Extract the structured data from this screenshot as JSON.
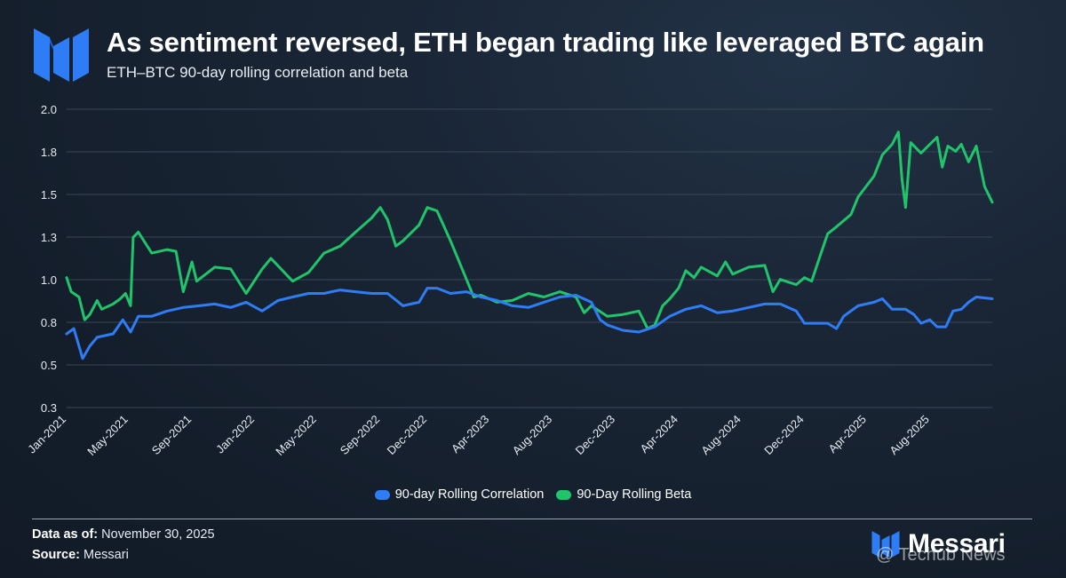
{
  "header": {
    "title": "As sentiment reversed, ETH began trading like leveraged BTC again",
    "subtitle": "ETH–BTC 90-day rolling correlation and beta"
  },
  "footer": {
    "data_as_of_label": "Data as of:",
    "data_as_of_value": "November 30, 2025",
    "source_label": "Source:",
    "source_value": "Messari",
    "brand": "Messari",
    "watermark": "@ Techub News"
  },
  "colors": {
    "correlation": "#2f7df6",
    "beta": "#20c46a",
    "grid": "#3a4656",
    "brand_blue": "#2f7df6"
  },
  "chart_data": {
    "type": "line",
    "title": "As sentiment reversed, ETH began trading like leveraged BTC again",
    "subtitle": "ETH–BTC 90-day rolling correlation and beta",
    "xlabel": "",
    "ylabel": "",
    "ylim": [
      0.3,
      2.0
    ],
    "y_ticks": [
      "2.0",
      "1.8",
      "1.5",
      "1.3",
      "1.0",
      "0.8",
      "0.5",
      "0.3"
    ],
    "x_ticks": [
      "Jan-2021",
      "May-2021",
      "Sep-2021",
      "Jan-2022",
      "May-2022",
      "Sep-2022",
      "Dec-2022",
      "Apr-2023",
      "Aug-2023",
      "Dec-2023",
      "Apr-2024",
      "Aug-2024",
      "Dec-2024",
      "Apr-2025",
      "Aug-2025"
    ],
    "grid": true,
    "legend_position": "bottom",
    "series": [
      {
        "name": "90-day Rolling Correlation",
        "color": "#2f7df6",
        "points": [
          [
            "2021-01-01",
            0.72
          ],
          [
            "2021-01-15",
            0.75
          ],
          [
            "2021-02-01",
            0.58
          ],
          [
            "2021-02-15",
            0.65
          ],
          [
            "2021-03-01",
            0.7
          ],
          [
            "2021-04-01",
            0.72
          ],
          [
            "2021-04-20",
            0.8
          ],
          [
            "2021-05-05",
            0.73
          ],
          [
            "2021-05-20",
            0.82
          ],
          [
            "2021-06-15",
            0.82
          ],
          [
            "2021-07-15",
            0.85
          ],
          [
            "2021-08-15",
            0.87
          ],
          [
            "2021-09-15",
            0.88
          ],
          [
            "2021-10-15",
            0.89
          ],
          [
            "2021-11-15",
            0.87
          ],
          [
            "2021-12-15",
            0.9
          ],
          [
            "2022-01-15",
            0.85
          ],
          [
            "2022-02-15",
            0.91
          ],
          [
            "2022-03-15",
            0.93
          ],
          [
            "2022-04-15",
            0.95
          ],
          [
            "2022-05-15",
            0.95
          ],
          [
            "2022-06-15",
            0.97
          ],
          [
            "2022-07-15",
            0.96
          ],
          [
            "2022-08-15",
            0.95
          ],
          [
            "2022-09-15",
            0.95
          ],
          [
            "2022-10-15",
            0.88
          ],
          [
            "2022-11-15",
            0.9
          ],
          [
            "2022-12-01",
            0.98
          ],
          [
            "2022-12-20",
            0.98
          ],
          [
            "2023-01-15",
            0.95
          ],
          [
            "2023-02-15",
            0.96
          ],
          [
            "2023-03-15",
            0.93
          ],
          [
            "2023-04-15",
            0.91
          ],
          [
            "2023-05-15",
            0.88
          ],
          [
            "2023-06-15",
            0.87
          ],
          [
            "2023-07-15",
            0.9
          ],
          [
            "2023-08-15",
            0.93
          ],
          [
            "2023-09-15",
            0.94
          ],
          [
            "2023-10-15",
            0.9
          ],
          [
            "2023-11-01",
            0.8
          ],
          [
            "2023-11-15",
            0.77
          ],
          [
            "2023-12-15",
            0.74
          ],
          [
            "2024-01-15",
            0.73
          ],
          [
            "2024-02-15",
            0.76
          ],
          [
            "2024-03-15",
            0.82
          ],
          [
            "2024-04-15",
            0.86
          ],
          [
            "2024-05-15",
            0.88
          ],
          [
            "2024-06-15",
            0.84
          ],
          [
            "2024-07-15",
            0.85
          ],
          [
            "2024-08-15",
            0.87
          ],
          [
            "2024-09-15",
            0.89
          ],
          [
            "2024-10-15",
            0.89
          ],
          [
            "2024-11-15",
            0.85
          ],
          [
            "2024-12-01",
            0.78
          ],
          [
            "2024-12-15",
            0.78
          ],
          [
            "2025-01-15",
            0.78
          ],
          [
            "2025-02-01",
            0.75
          ],
          [
            "2025-02-15",
            0.82
          ],
          [
            "2025-03-15",
            0.88
          ],
          [
            "2025-04-15",
            0.9
          ],
          [
            "2025-05-01",
            0.92
          ],
          [
            "2025-05-20",
            0.86
          ],
          [
            "2025-06-15",
            0.86
          ],
          [
            "2025-07-01",
            0.83
          ],
          [
            "2025-07-15",
            0.78
          ],
          [
            "2025-08-01",
            0.8
          ],
          [
            "2025-08-15",
            0.76
          ],
          [
            "2025-09-01",
            0.76
          ],
          [
            "2025-09-15",
            0.85
          ],
          [
            "2025-10-01",
            0.86
          ],
          [
            "2025-10-15",
            0.9
          ],
          [
            "2025-10-30",
            0.93
          ],
          [
            "2025-11-30",
            0.92
          ]
        ]
      },
      {
        "name": "90-Day Rolling Beta",
        "color": "#20c46a",
        "points": [
          [
            "2021-01-01",
            1.04
          ],
          [
            "2021-01-10",
            0.96
          ],
          [
            "2021-01-25",
            0.93
          ],
          [
            "2021-02-05",
            0.8
          ],
          [
            "2021-02-15",
            0.83
          ],
          [
            "2021-03-01",
            0.91
          ],
          [
            "2021-03-10",
            0.86
          ],
          [
            "2021-04-01",
            0.89
          ],
          [
            "2021-04-15",
            0.92
          ],
          [
            "2021-04-25",
            0.95
          ],
          [
            "2021-05-05",
            0.88
          ],
          [
            "2021-05-10",
            1.27
          ],
          [
            "2021-05-20",
            1.3
          ],
          [
            "2021-06-15",
            1.18
          ],
          [
            "2021-07-15",
            1.2
          ],
          [
            "2021-08-01",
            1.19
          ],
          [
            "2021-08-15",
            0.96
          ],
          [
            "2021-09-01",
            1.13
          ],
          [
            "2021-09-10",
            1.02
          ],
          [
            "2021-10-15",
            1.1
          ],
          [
            "2021-11-15",
            1.09
          ],
          [
            "2021-12-15",
            0.95
          ],
          [
            "2022-01-15",
            1.09
          ],
          [
            "2022-02-01",
            1.15
          ],
          [
            "2022-03-15",
            1.02
          ],
          [
            "2022-04-15",
            1.07
          ],
          [
            "2022-05-15",
            1.18
          ],
          [
            "2022-06-15",
            1.22
          ],
          [
            "2022-07-15",
            1.3
          ],
          [
            "2022-08-15",
            1.38
          ],
          [
            "2022-09-01",
            1.44
          ],
          [
            "2022-09-15",
            1.37
          ],
          [
            "2022-10-01",
            1.22
          ],
          [
            "2022-10-15",
            1.25
          ],
          [
            "2022-11-15",
            1.34
          ],
          [
            "2022-12-01",
            1.44
          ],
          [
            "2022-12-20",
            1.42
          ],
          [
            "2023-01-15",
            1.25
          ],
          [
            "2023-02-15",
            1.03
          ],
          [
            "2023-03-01",
            0.93
          ],
          [
            "2023-03-15",
            0.94
          ],
          [
            "2023-04-15",
            0.9
          ],
          [
            "2023-05-15",
            0.91
          ],
          [
            "2023-06-15",
            0.95
          ],
          [
            "2023-07-15",
            0.93
          ],
          [
            "2023-08-15",
            0.96
          ],
          [
            "2023-09-15",
            0.93
          ],
          [
            "2023-10-01",
            0.84
          ],
          [
            "2023-10-15",
            0.88
          ],
          [
            "2023-11-15",
            0.82
          ],
          [
            "2023-12-15",
            0.83
          ],
          [
            "2024-01-15",
            0.85
          ],
          [
            "2024-02-01",
            0.75
          ],
          [
            "2024-02-15",
            0.77
          ],
          [
            "2024-03-01",
            0.88
          ],
          [
            "2024-03-15",
            0.92
          ],
          [
            "2024-04-01",
            0.98
          ],
          [
            "2024-04-15",
            1.08
          ],
          [
            "2024-05-01",
            1.04
          ],
          [
            "2024-05-15",
            1.1
          ],
          [
            "2024-06-15",
            1.05
          ],
          [
            "2024-07-01",
            1.13
          ],
          [
            "2024-07-15",
            1.06
          ],
          [
            "2024-08-15",
            1.1
          ],
          [
            "2024-09-15",
            1.11
          ],
          [
            "2024-10-01",
            0.96
          ],
          [
            "2024-10-15",
            1.03
          ],
          [
            "2024-11-15",
            1.0
          ],
          [
            "2024-12-01",
            1.04
          ],
          [
            "2024-12-15",
            1.02
          ],
          [
            "2025-01-01",
            1.17
          ],
          [
            "2025-01-15",
            1.29
          ],
          [
            "2025-02-01",
            1.33
          ],
          [
            "2025-03-01",
            1.4
          ],
          [
            "2025-03-15",
            1.5
          ],
          [
            "2025-04-15",
            1.62
          ],
          [
            "2025-05-01",
            1.74
          ],
          [
            "2025-05-20",
            1.8
          ],
          [
            "2025-06-01",
            1.87
          ],
          [
            "2025-06-08",
            1.6
          ],
          [
            "2025-06-15",
            1.44
          ],
          [
            "2025-06-25",
            1.81
          ],
          [
            "2025-07-15",
            1.75
          ],
          [
            "2025-08-01",
            1.8
          ],
          [
            "2025-08-15",
            1.84
          ],
          [
            "2025-08-25",
            1.67
          ],
          [
            "2025-09-05",
            1.79
          ],
          [
            "2025-09-20",
            1.76
          ],
          [
            "2025-10-01",
            1.8
          ],
          [
            "2025-10-15",
            1.7
          ],
          [
            "2025-10-30",
            1.79
          ],
          [
            "2025-11-15",
            1.56
          ],
          [
            "2025-11-30",
            1.47
          ]
        ]
      }
    ]
  }
}
